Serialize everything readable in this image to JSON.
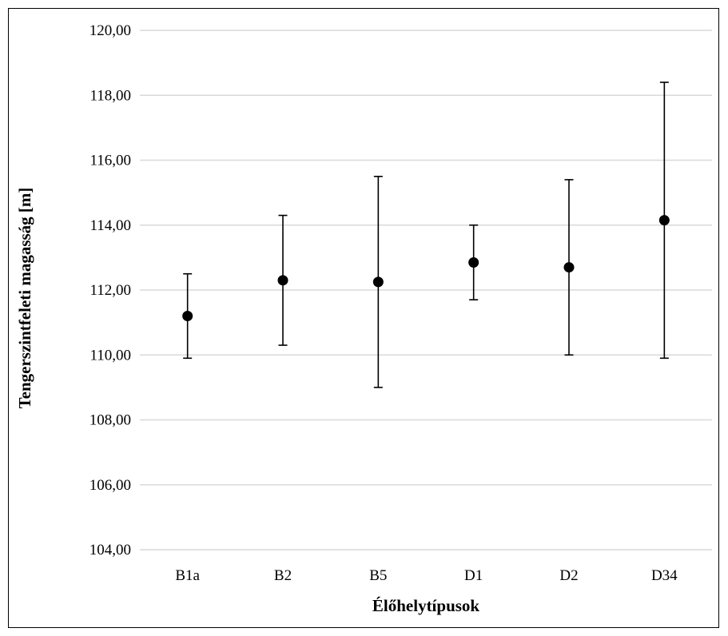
{
  "chart_data": {
    "type": "scatter",
    "title": "",
    "xlabel": "Élőhelytípusok",
    "ylabel": "Tengerszintfeleti magasság [m]",
    "ylim": [
      104,
      120
    ],
    "y_tick_step": 2,
    "y_tick_labels": [
      "104,00",
      "106,00",
      "108,00",
      "110,00",
      "112,00",
      "114,00",
      "116,00",
      "118,00",
      "120,00"
    ],
    "grid": true,
    "legend": "none",
    "marker_color": "#000000",
    "grid_color": "#d9d9d9",
    "categories": [
      "B1a",
      "B2",
      "B5",
      "D1",
      "D2",
      "D34"
    ],
    "values": [
      111.2,
      112.3,
      112.25,
      112.85,
      112.7,
      114.15
    ],
    "error_low": [
      109.9,
      110.3,
      109.0,
      111.7,
      110.0,
      109.9
    ],
    "error_high": [
      112.5,
      114.3,
      115.5,
      114.0,
      115.4,
      118.4
    ]
  }
}
